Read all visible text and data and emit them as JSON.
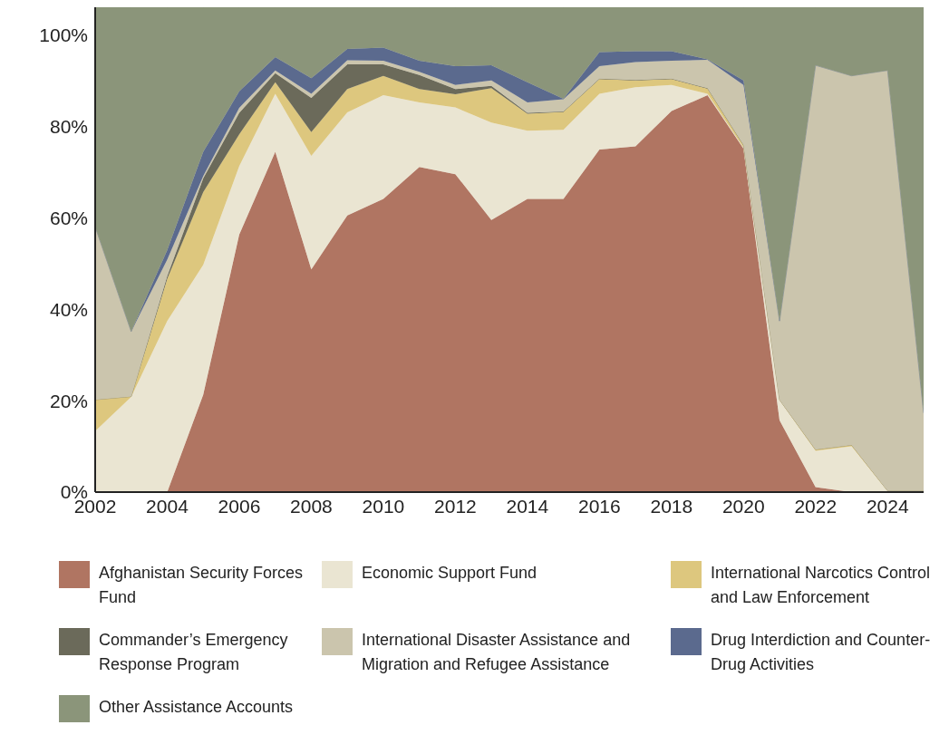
{
  "chart_data": {
    "type": "area",
    "stacked": true,
    "x": [
      2002,
      2003,
      2004,
      2005,
      2006,
      2007,
      2008,
      2009,
      2010,
      2011,
      2012,
      2013,
      2014,
      2015,
      2016,
      2017,
      2018,
      2019,
      2020,
      2021,
      2022,
      2023,
      2024,
      2025
    ],
    "series": [
      {
        "name": "Afghanistan Security Forces Fund",
        "color": "#b07562",
        "values": [
          0,
          0,
          0,
          21.3,
          56.3,
          74.4,
          48.7,
          60.5,
          64.1,
          71.1,
          69.5,
          59.5,
          64.1,
          64.1,
          74.9,
          75.6,
          83.3,
          86.8,
          75.1,
          15.7,
          1.1,
          0,
          0,
          0
        ]
      },
      {
        "name": "Economic Support Fund",
        "color": "#eae5d2",
        "values": [
          13.3,
          20.8,
          37.4,
          28.4,
          15.0,
          12.7,
          24.8,
          22.5,
          22.7,
          14.1,
          14.6,
          21.3,
          14.9,
          15.1,
          12.2,
          12.9,
          5.7,
          0.3,
          0.2,
          4.4,
          7.9,
          10.0,
          0.2,
          0
        ]
      },
      {
        "name": "International Narcotics Control and Law Enforcement",
        "color": "#ddc77e",
        "values": [
          6.9,
          0.1,
          9.2,
          15.9,
          6.9,
          2.5,
          5.2,
          5.1,
          4.2,
          2.9,
          2.9,
          7.5,
          3.7,
          3.9,
          3.2,
          1.5,
          1.3,
          1.1,
          0.5,
          0.1,
          0.3,
          0.3,
          0.1,
          0.3
        ]
      },
      {
        "name": "Commander’s Emergency Response Program",
        "color": "#6b6a5a",
        "values": [
          0,
          0,
          0.6,
          3.0,
          4.7,
          2.0,
          7.5,
          5.4,
          2.5,
          3.1,
          1.1,
          0.5,
          0.2,
          0.1,
          0.1,
          0.1,
          0.1,
          0.1,
          0.1,
          0,
          0,
          0,
          0,
          0
        ]
      },
      {
        "name": "International Disaster Assistance and Migration and Refugee Assistance",
        "color": "#cbc5ad",
        "values": [
          37.8,
          14.2,
          3.6,
          0.5,
          1.1,
          0.6,
          0.9,
          0.9,
          0.8,
          0.7,
          0.9,
          1.2,
          2.3,
          2.7,
          2.7,
          3.9,
          3.9,
          6.2,
          13.1,
          17.2,
          84.0,
          80.7,
          91.9,
          17.0
        ]
      },
      {
        "name": "Drug Interdiction and Counter-Drug Activities",
        "color": "#5b6a8e",
        "values": [
          0,
          0,
          2.1,
          5.3,
          3.6,
          2.9,
          3.4,
          2.5,
          2.9,
          2.4,
          4.1,
          3.3,
          4.4,
          0.1,
          3.1,
          2.4,
          2.1,
          0.1,
          1.0,
          0,
          0,
          0,
          0,
          0
        ]
      },
      {
        "name": "Other Assistance Accounts",
        "color": "#8b957a",
        "values": [
          48.0,
          70.9,
          53.1,
          31.6,
          18.4,
          10.9,
          15.5,
          9.1,
          8.8,
          11.7,
          12.9,
          12.7,
          16.4,
          20.0,
          9.8,
          9.6,
          9.6,
          11.4,
          16.0,
          68.6,
          12.7,
          15.0,
          13.8,
          88.7
        ]
      }
    ],
    "xlim": [
      2002,
      2025
    ],
    "xticks": [
      2002,
      2004,
      2006,
      2008,
      2010,
      2012,
      2014,
      2016,
      2018,
      2020,
      2022,
      2024
    ],
    "ylim": [
      0,
      106
    ],
    "yticks": [
      {
        "value": 0,
        "label": "0%"
      },
      {
        "value": 20,
        "label": "20%"
      },
      {
        "value": 40,
        "label": "40%"
      },
      {
        "value": 60,
        "label": "60%"
      },
      {
        "value": 80,
        "label": "80%"
      },
      {
        "value": 100,
        "label": "100%"
      }
    ],
    "grid": false,
    "legend": "bottom"
  }
}
